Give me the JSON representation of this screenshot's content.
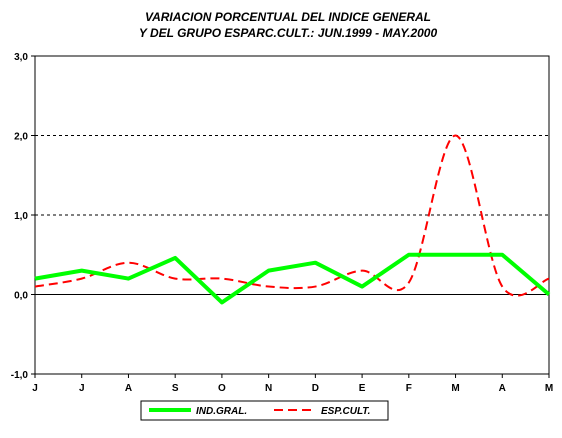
{
  "chart_data": {
    "type": "line",
    "title": [
      "VARIACION PORCENTUAL DEL INDICE GENERAL",
      "Y DEL GRUPO ESPARC.CULT.: JUN.1999 - MAY.2000"
    ],
    "categories": [
      "J",
      "J",
      "A",
      "S",
      "O",
      "N",
      "D",
      "E",
      "F",
      "M",
      "A",
      "M"
    ],
    "ylim": [
      -1.0,
      3.0
    ],
    "yticks": [
      -1.0,
      0.0,
      1.0,
      2.0,
      3.0
    ],
    "ytick_labels": [
      "-1,0",
      "0,0",
      "1,0",
      "2,0",
      "3,0"
    ],
    "grid": "dashed horizontal at 1,0 and 2,0",
    "legend_position": "bottom",
    "series": [
      {
        "name": "IND.GRAL.",
        "color": "#00ff00",
        "style": "solid",
        "values": [
          0.2,
          0.3,
          0.2,
          0.46,
          -0.1,
          0.3,
          0.4,
          0.1,
          0.5,
          0.5,
          0.5,
          0.0
        ]
      },
      {
        "name": "ESP.CULT.",
        "color": "#ff0000",
        "style": "dashed",
        "values": [
          0.1,
          0.2,
          0.4,
          0.2,
          0.2,
          0.1,
          0.1,
          0.3,
          0.15,
          2.0,
          0.1,
          0.2
        ]
      }
    ]
  }
}
